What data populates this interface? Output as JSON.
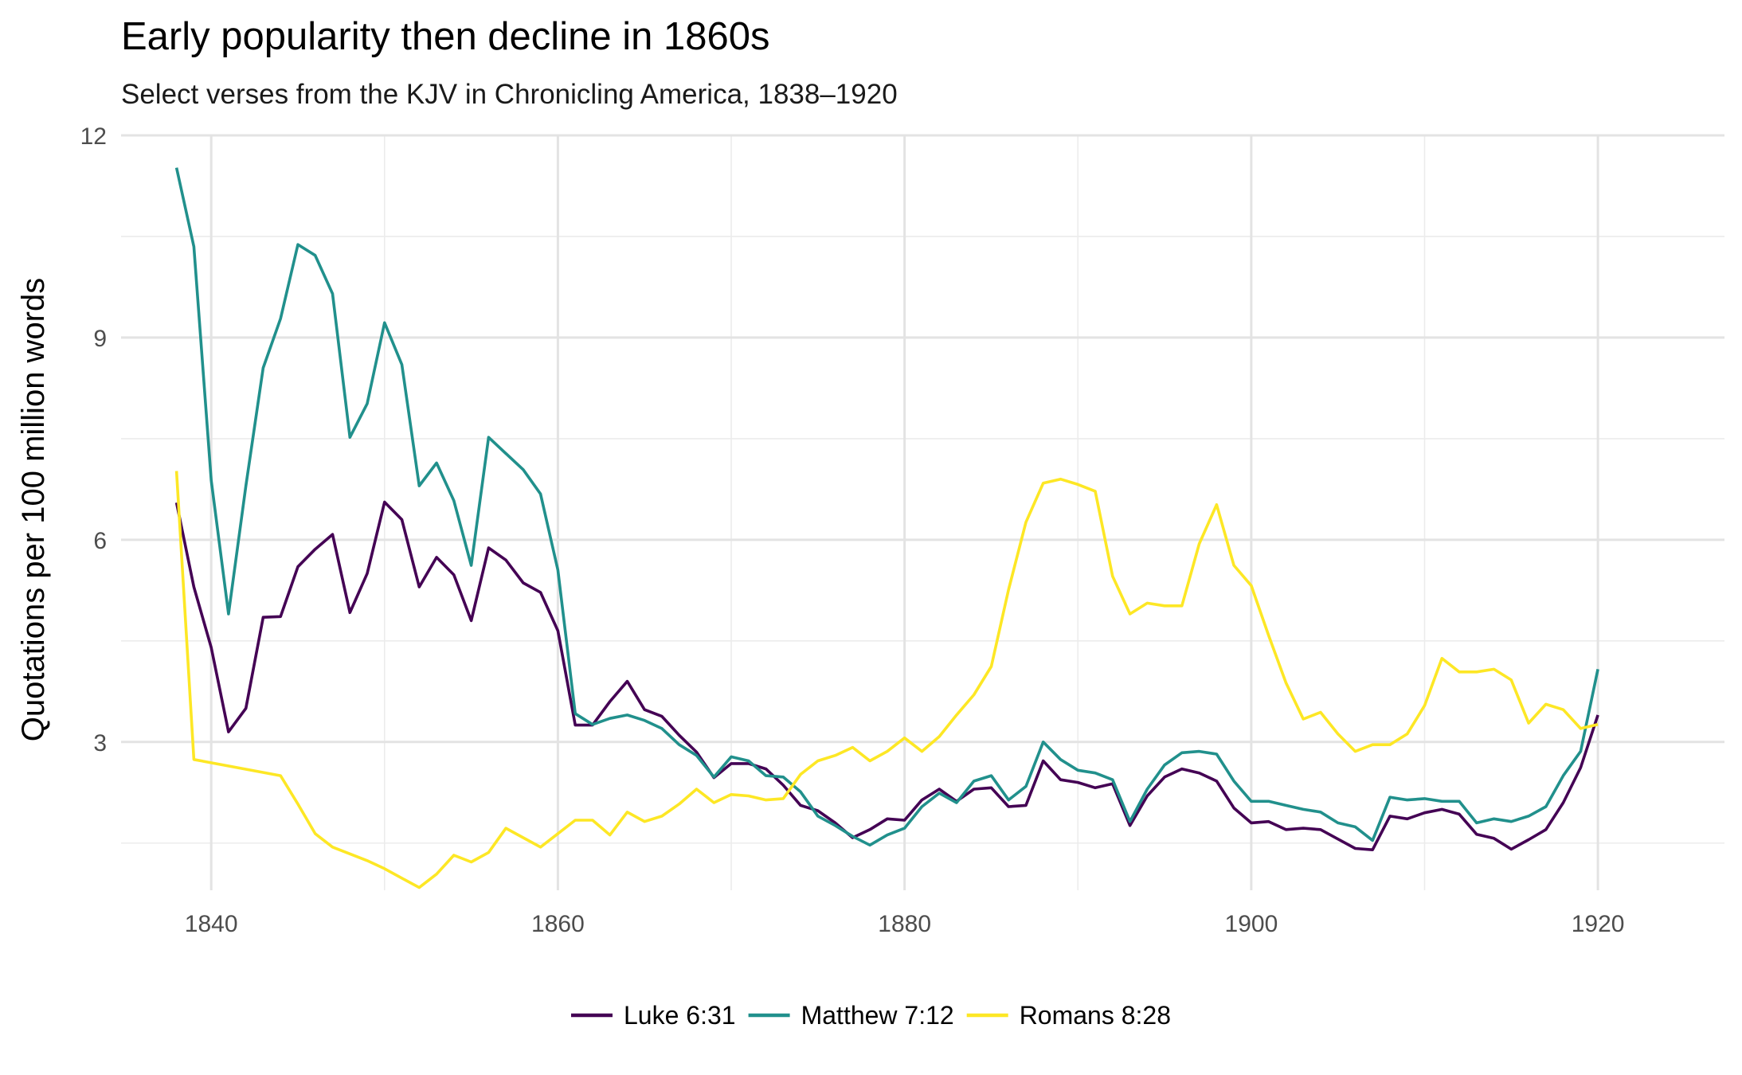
{
  "chart_data": {
    "type": "line",
    "title": "Early popularity then decline in 1860s",
    "subtitle": "Select verses from the KJV in Chronicling America, 1838–1920",
    "xlabel": "",
    "ylabel": "Quotations per 100 million words",
    "xlim": [
      1834.8,
      1927.3
    ],
    "ylim": [
      0.8,
      12
    ],
    "xticks": [
      1840,
      1860,
      1880,
      1900,
      1920
    ],
    "yticks": [
      3,
      6,
      9,
      12
    ],
    "grid": true,
    "legend_position": "bottom",
    "series": [
      {
        "name": "Luke 6:31",
        "color": "#440154",
        "x": [
          1838,
          1839,
          1840,
          1841,
          1842,
          1843,
          1844,
          1845,
          1846,
          1847,
          1848,
          1849,
          1850,
          1851,
          1852,
          1853,
          1854,
          1855,
          1856,
          1857,
          1858,
          1859,
          1860,
          1861,
          1862,
          1863,
          1864,
          1865,
          1866,
          1867,
          1868,
          1869,
          1870,
          1871,
          1872,
          1873,
          1874,
          1875,
          1876,
          1877,
          1878,
          1879,
          1880,
          1881,
          1882,
          1883,
          1884,
          1885,
          1886,
          1887,
          1888,
          1889,
          1890,
          1891,
          1892,
          1893,
          1894,
          1895,
          1896,
          1897,
          1898,
          1899,
          1900,
          1901,
          1902,
          1903,
          1904,
          1905,
          1906,
          1907,
          1908,
          1909,
          1910,
          1911,
          1912,
          1913,
          1914,
          1915,
          1916,
          1917,
          1918,
          1919,
          1920
        ],
        "values": [
          6.55,
          5.3,
          4.4,
          3.15,
          3.5,
          4.85,
          4.86,
          5.6,
          5.86,
          6.08,
          4.92,
          5.5,
          6.56,
          6.3,
          5.3,
          5.74,
          5.48,
          4.8,
          5.88,
          5.7,
          5.36,
          5.22,
          4.65,
          3.25,
          3.25,
          3.6,
          3.9,
          3.48,
          3.38,
          3.1,
          2.85,
          2.47,
          2.68,
          2.68,
          2.6,
          2.36,
          2.06,
          1.98,
          1.8,
          1.58,
          1.7,
          1.86,
          1.84,
          2.14,
          2.3,
          2.12,
          2.3,
          2.32,
          2.04,
          2.06,
          2.72,
          2.44,
          2.4,
          2.32,
          2.38,
          1.76,
          2.2,
          2.48,
          2.6,
          2.54,
          2.42,
          2.02,
          1.8,
          1.82,
          1.7,
          1.72,
          1.7,
          1.56,
          1.42,
          1.4,
          1.9,
          1.86,
          1.95,
          2.0,
          1.93,
          1.63,
          1.57,
          1.41,
          1.55,
          1.7,
          2.1,
          2.62,
          3.4
        ]
      },
      {
        "name": "Matthew 7:12",
        "color": "#21908C",
        "x": [
          1838,
          1839,
          1840,
          1841,
          1842,
          1843,
          1844,
          1845,
          1846,
          1847,
          1848,
          1849,
          1850,
          1851,
          1852,
          1853,
          1854,
          1855,
          1856,
          1857,
          1858,
          1859,
          1860,
          1861,
          1862,
          1863,
          1864,
          1865,
          1866,
          1867,
          1868,
          1869,
          1870,
          1871,
          1872,
          1873,
          1874,
          1875,
          1876,
          1877,
          1878,
          1879,
          1880,
          1881,
          1882,
          1883,
          1884,
          1885,
          1886,
          1887,
          1888,
          1889,
          1890,
          1891,
          1892,
          1893,
          1894,
          1895,
          1896,
          1897,
          1898,
          1899,
          1900,
          1901,
          1902,
          1903,
          1904,
          1905,
          1906,
          1907,
          1908,
          1909,
          1910,
          1911,
          1912,
          1913,
          1914,
          1915,
          1916,
          1917,
          1918,
          1919,
          1920
        ],
        "values": [
          11.52,
          10.35,
          6.88,
          4.9,
          6.8,
          8.55,
          9.28,
          10.38,
          10.22,
          9.65,
          7.52,
          8.02,
          9.22,
          8.6,
          6.8,
          7.14,
          6.58,
          5.62,
          7.52,
          7.28,
          7.04,
          6.68,
          5.55,
          3.42,
          3.26,
          3.35,
          3.4,
          3.32,
          3.2,
          2.96,
          2.8,
          2.48,
          2.78,
          2.72,
          2.5,
          2.48,
          2.26,
          1.9,
          1.76,
          1.6,
          1.47,
          1.62,
          1.72,
          2.04,
          2.24,
          2.1,
          2.42,
          2.5,
          2.14,
          2.34,
          3.0,
          2.74,
          2.58,
          2.54,
          2.44,
          1.82,
          2.3,
          2.66,
          2.84,
          2.86,
          2.82,
          2.42,
          2.12,
          2.12,
          2.06,
          2.0,
          1.96,
          1.8,
          1.74,
          1.54,
          2.18,
          2.14,
          2.16,
          2.12,
          2.12,
          1.8,
          1.86,
          1.82,
          1.9,
          2.04,
          2.5,
          2.86,
          4.08
        ]
      },
      {
        "name": "Romans 8:28",
        "color": "#FDE725",
        "x": [
          1838,
          1839,
          1844,
          1845,
          1846,
          1847,
          1848,
          1849,
          1850,
          1851,
          1852,
          1853,
          1854,
          1855,
          1856,
          1857,
          1858,
          1859,
          1860,
          1861,
          1862,
          1863,
          1864,
          1865,
          1866,
          1867,
          1868,
          1869,
          1870,
          1871,
          1872,
          1873,
          1874,
          1875,
          1876,
          1877,
          1878,
          1879,
          1880,
          1881,
          1882,
          1883,
          1884,
          1885,
          1886,
          1887,
          1888,
          1889,
          1890,
          1891,
          1892,
          1893,
          1894,
          1895,
          1896,
          1897,
          1898,
          1899,
          1900,
          1901,
          1902,
          1903,
          1904,
          1905,
          1906,
          1907,
          1908,
          1909,
          1910,
          1911,
          1912,
          1913,
          1914,
          1915,
          1916,
          1917,
          1918,
          1919,
          1920
        ],
        "values": [
          7.02,
          2.74,
          2.5,
          2.08,
          1.64,
          1.44,
          1.34,
          1.24,
          1.12,
          0.98,
          0.84,
          1.04,
          1.32,
          1.22,
          1.36,
          1.72,
          1.58,
          1.44,
          1.64,
          1.84,
          1.84,
          1.62,
          1.96,
          1.82,
          1.9,
          2.08,
          2.3,
          2.1,
          2.22,
          2.2,
          2.14,
          2.16,
          2.52,
          2.72,
          2.8,
          2.92,
          2.72,
          2.86,
          3.06,
          2.86,
          3.08,
          3.4,
          3.7,
          4.12,
          5.26,
          6.26,
          6.84,
          6.9,
          6.82,
          6.72,
          5.46,
          4.9,
          5.06,
          5.02,
          5.02,
          5.94,
          6.52,
          5.62,
          5.32,
          4.58,
          3.88,
          3.34,
          3.44,
          3.12,
          2.86,
          2.96,
          2.96,
          3.12,
          3.54,
          4.24,
          4.04,
          4.04,
          4.08,
          3.92,
          3.28,
          3.56,
          3.48,
          3.2,
          3.26
        ]
      }
    ]
  }
}
